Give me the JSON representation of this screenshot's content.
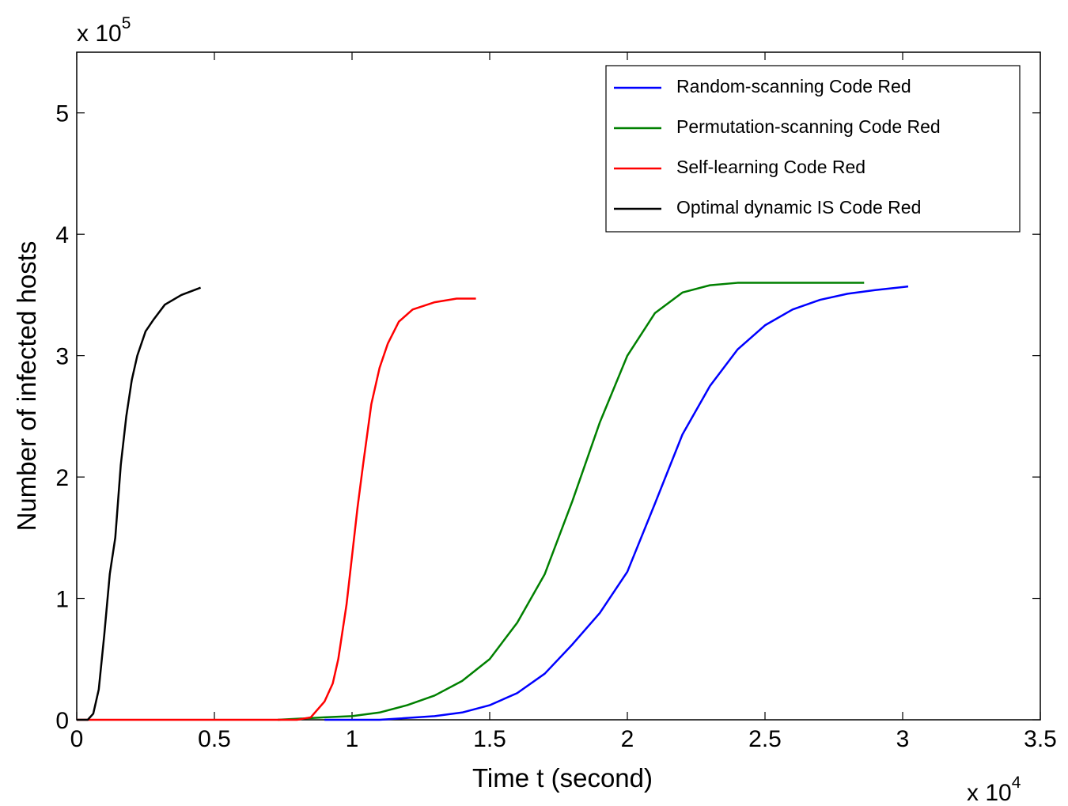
{
  "chart_data": {
    "type": "line",
    "xlabel": "Time t (second)",
    "ylabel": "Number of infected hosts",
    "x_multiplier": {
      "base": "x 10",
      "exponent": "4"
    },
    "y_multiplier": {
      "base": "x 10",
      "exponent": "5"
    },
    "xlim": [
      0,
      3.5
    ],
    "xticks": [
      0,
      0.5,
      1,
      1.5,
      2,
      2.5,
      3,
      3.5
    ],
    "ylim": [
      0,
      5.5
    ],
    "yticks": [
      0,
      1,
      2,
      3,
      4,
      5
    ],
    "legend": "northeast",
    "series": [
      {
        "name": "Random-scanning Code Red",
        "color": "#0000ff",
        "x": [
          0.9,
          1.1,
          1.3,
          1.4,
          1.5,
          1.6,
          1.7,
          1.8,
          1.9,
          2.0,
          2.1,
          2.2,
          2.3,
          2.4,
          2.5,
          2.6,
          2.7,
          2.8,
          2.9,
          3.02
        ],
        "values": [
          0,
          0,
          0.03,
          0.06,
          0.12,
          0.22,
          0.38,
          0.62,
          0.88,
          1.22,
          1.78,
          2.35,
          2.75,
          3.05,
          3.25,
          3.38,
          3.46,
          3.51,
          3.54,
          3.57
        ]
      },
      {
        "name": "Permutation-scanning Code Red",
        "color": "#008000",
        "x": [
          0.73,
          0.9,
          1.0,
          1.1,
          1.2,
          1.3,
          1.4,
          1.5,
          1.6,
          1.7,
          1.8,
          1.9,
          2.0,
          2.1,
          2.2,
          2.3,
          2.4,
          2.86
        ],
        "values": [
          0,
          0.02,
          0.03,
          0.06,
          0.12,
          0.2,
          0.32,
          0.5,
          0.8,
          1.2,
          1.8,
          2.45,
          3.0,
          3.35,
          3.52,
          3.58,
          3.6,
          3.6
        ]
      },
      {
        "name": "Self-learning Code Red",
        "color": "#ff0000",
        "x": [
          0,
          0.8,
          0.85,
          0.9,
          0.93,
          0.95,
          0.98,
          1.0,
          1.02,
          1.04,
          1.07,
          1.1,
          1.13,
          1.17,
          1.22,
          1.3,
          1.38,
          1.45
        ],
        "values": [
          0,
          0,
          0.02,
          0.15,
          0.3,
          0.5,
          0.95,
          1.35,
          1.75,
          2.1,
          2.6,
          2.9,
          3.1,
          3.28,
          3.38,
          3.44,
          3.47,
          3.47
        ]
      },
      {
        "name": "Optimal dynamic IS Code Red",
        "color": "#000000",
        "x": [
          0,
          0.04,
          0.06,
          0.08,
          0.1,
          0.12,
          0.14,
          0.16,
          0.18,
          0.2,
          0.22,
          0.25,
          0.28,
          0.32,
          0.38,
          0.45
        ],
        "values": [
          0,
          0,
          0.05,
          0.25,
          0.7,
          1.2,
          1.5,
          2.1,
          2.5,
          2.8,
          3.0,
          3.2,
          3.3,
          3.42,
          3.5,
          3.56
        ]
      }
    ]
  }
}
